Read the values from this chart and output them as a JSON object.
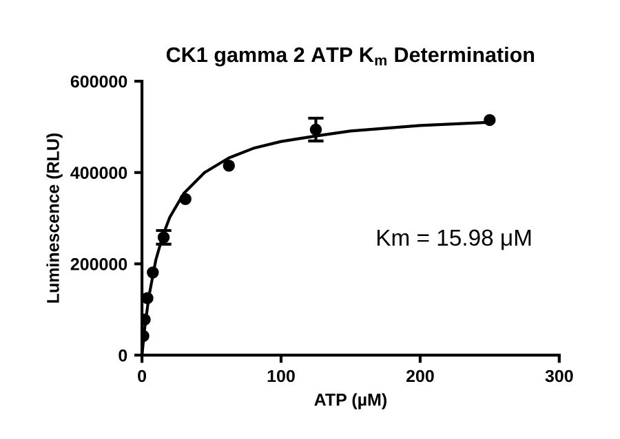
{
  "chart_data": {
    "type": "scatter",
    "title": "CK1 gamma 2 ATP K$_{m}$ Determination",
    "xlabel": "ATP (µM)",
    "ylabel": "Luminescence (RLU)",
    "xlim": [
      0,
      300
    ],
    "xticks": [
      0,
      100,
      200,
      300
    ],
    "ylim": [
      0,
      600000
    ],
    "yticks": [
      0,
      200000,
      400000,
      600000
    ],
    "grid": false,
    "annotations": [
      "Km = 15.98 μM"
    ],
    "series": [
      {
        "color": "#000000",
        "marker": "circle",
        "x": [
          0.98,
          1.95,
          3.9,
          7.8,
          15.6,
          31.25,
          62.5,
          125,
          250
        ],
        "values": [
          42000,
          78000,
          125000,
          181000,
          258000,
          342000,
          415000,
          494000,
          515000
        ],
        "errors": [
          null,
          null,
          null,
          null,
          15000,
          null,
          null,
          25000,
          null
        ]
      },
      {
        "type": "line",
        "color": "#000000",
        "marker": "none",
        "line_style": "solid",
        "x": [
          0,
          2,
          5,
          10,
          15,
          20,
          30,
          45,
          62.5,
          80,
          100,
          125,
          150,
          200,
          250
        ],
        "values": [
          0,
          60000,
          129000,
          209000,
          262000,
          302000,
          354000,
          400000,
          432000,
          453000,
          468000,
          480000,
          491000,
          503000,
          510000
        ]
      }
    ]
  }
}
